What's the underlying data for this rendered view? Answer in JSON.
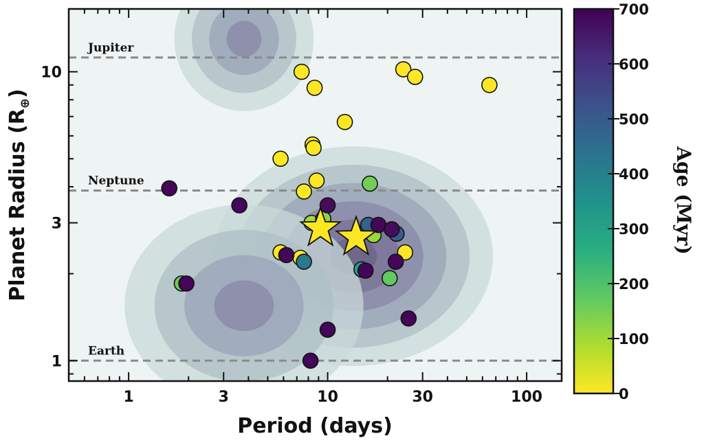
{
  "chart_data": {
    "type": "scatter",
    "xlabel": "Period (days)",
    "ylabel": "Planet Radius (R",
    "ylabel_sub": "⊕",
    "ylabel_close": ")",
    "xscale": "log",
    "yscale": "log",
    "xlim": [
      0.5,
      150
    ],
    "ylim": [
      0.85,
      16.5
    ],
    "xticks": [
      1,
      3,
      10,
      30,
      100
    ],
    "xtick_labels": [
      "1",
      "3",
      "10",
      "30",
      "100"
    ],
    "yticks": [
      1,
      3,
      10
    ],
    "ytick_labels": [
      "1",
      "3",
      "10"
    ],
    "reference_lines": [
      {
        "label": "Jupiter",
        "y": 11.2
      },
      {
        "label": "Neptune",
        "y": 3.88
      },
      {
        "label": "Earth",
        "y": 1.0
      }
    ],
    "colorbar": {
      "label": "Age (Myr)",
      "range": [
        0,
        700
      ],
      "ticks": [
        0,
        100,
        200,
        300,
        400,
        500,
        600,
        700
      ],
      "colormap": "viridis"
    },
    "density_contours": [
      {
        "center": [
          13.5,
          2.3
        ],
        "width": [
          0.7,
          0.38
        ],
        "levels": 6
      },
      {
        "center": [
          3.8,
          1.55
        ],
        "width": [
          0.6,
          0.35
        ],
        "levels": 4
      },
      {
        "center": [
          3.8,
          13.0
        ],
        "width": [
          0.35,
          0.25
        ],
        "levels": 4
      }
    ],
    "points": [
      {
        "x": 7.4,
        "y": 10.0,
        "age": 0
      },
      {
        "x": 8.6,
        "y": 8.8,
        "age": 0
      },
      {
        "x": 24.0,
        "y": 10.2,
        "age": 0
      },
      {
        "x": 27.5,
        "y": 9.6,
        "age": 0
      },
      {
        "x": 65.0,
        "y": 9.0,
        "age": 0
      },
      {
        "x": 12.2,
        "y": 6.7,
        "age": 0
      },
      {
        "x": 8.4,
        "y": 5.6,
        "age": 0
      },
      {
        "x": 8.5,
        "y": 5.45,
        "age": 0
      },
      {
        "x": 5.8,
        "y": 5.0,
        "age": 0
      },
      {
        "x": 8.8,
        "y": 4.2,
        "age": 0
      },
      {
        "x": 7.6,
        "y": 3.85,
        "age": 0
      },
      {
        "x": 5.8,
        "y": 2.37,
        "age": 0
      },
      {
        "x": 7.3,
        "y": 2.27,
        "age": 0
      },
      {
        "x": 24.5,
        "y": 2.37,
        "age": 0
      },
      {
        "x": 8.3,
        "y": 3.0,
        "age": 100
      },
      {
        "x": 9.5,
        "y": 3.1,
        "age": 120
      },
      {
        "x": 16.3,
        "y": 4.1,
        "age": 150
      },
      {
        "x": 17.0,
        "y": 2.72,
        "age": 110
      },
      {
        "x": 1.85,
        "y": 1.85,
        "age": 160
      },
      {
        "x": 20.5,
        "y": 1.93,
        "age": 170
      },
      {
        "x": 14.8,
        "y": 2.07,
        "age": 300
      },
      {
        "x": 7.6,
        "y": 2.2,
        "age": 420
      },
      {
        "x": 16.0,
        "y": 2.95,
        "age": 480
      },
      {
        "x": 22.2,
        "y": 2.75,
        "age": 500
      },
      {
        "x": 1.6,
        "y": 3.95,
        "age": 690
      },
      {
        "x": 3.6,
        "y": 3.45,
        "age": 690
      },
      {
        "x": 10.0,
        "y": 3.45,
        "age": 680
      },
      {
        "x": 6.2,
        "y": 2.32,
        "age": 690
      },
      {
        "x": 18.0,
        "y": 2.95,
        "age": 690
      },
      {
        "x": 21.0,
        "y": 2.85,
        "age": 680
      },
      {
        "x": 15.5,
        "y": 2.05,
        "age": 690
      },
      {
        "x": 22.0,
        "y": 2.2,
        "age": 690
      },
      {
        "x": 1.95,
        "y": 1.85,
        "age": 690
      },
      {
        "x": 25.5,
        "y": 1.4,
        "age": 690
      },
      {
        "x": 10.0,
        "y": 1.28,
        "age": 690
      },
      {
        "x": 8.2,
        "y": 1.0,
        "age": 690
      }
    ],
    "stars": [
      {
        "x": 9.2,
        "y": 2.87,
        "age": 0
      },
      {
        "x": 13.9,
        "y": 2.67,
        "age": 0
      }
    ]
  }
}
